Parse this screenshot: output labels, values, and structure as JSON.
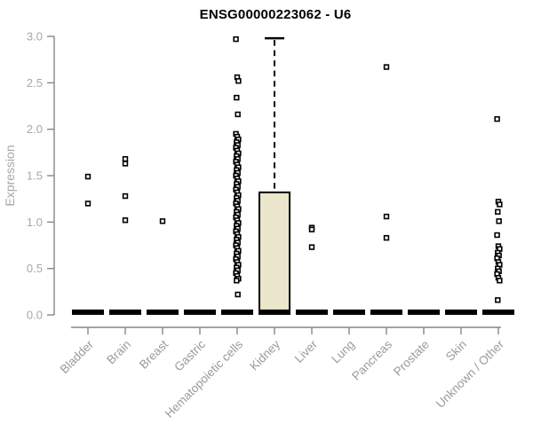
{
  "colors": {
    "background": "#ffffff",
    "title": "#000000",
    "axis": "#878787",
    "tick_label": "#a3a8ad",
    "category_label": "#9a9a9a",
    "box_fill": "#ece6cc",
    "box_stroke": "#000000",
    "point_stroke": "#000000",
    "median_bar": "#000000"
  },
  "chart_data": {
    "type": "boxplot",
    "title": "ENSG00000223062 - U6",
    "ylabel": "Expression",
    "xlabel": "",
    "ylim": [
      0.0,
      3.0
    ],
    "yticks": [
      "0.0",
      "0.5",
      "1.0",
      "1.5",
      "2.0",
      "2.5",
      "3.0"
    ],
    "ytick_values": [
      0.0,
      0.5,
      1.0,
      1.5,
      2.0,
      2.5,
      3.0
    ],
    "grid": false,
    "legend": "none",
    "categories": [
      "Bladder",
      "Brain",
      "Breast",
      "Gastric",
      "Hematopoietic cells",
      "Kidney",
      "Liver",
      "Lung",
      "Pancreas",
      "Prostate",
      "Skin",
      "Unknown / Other"
    ],
    "series": [
      {
        "category": "Bladder",
        "median": 0.02,
        "points": [
          1.49,
          1.2
        ]
      },
      {
        "category": "Brain",
        "median": 0.02,
        "points": [
          1.68,
          1.63,
          1.28,
          1.02
        ]
      },
      {
        "category": "Breast",
        "median": 0.02,
        "points": [
          1.01
        ]
      },
      {
        "category": "Gastric",
        "median": 0.02,
        "points": []
      },
      {
        "category": "Hematopoietic cells",
        "median": 0.02,
        "points": [
          2.97,
          2.56,
          2.52,
          2.34,
          2.16,
          1.95,
          1.92,
          1.89,
          1.86,
          1.83,
          1.8,
          1.77,
          1.74,
          1.71,
          1.68,
          1.65,
          1.62,
          1.59,
          1.56,
          1.53,
          1.5,
          1.47,
          1.44,
          1.41,
          1.38,
          1.35,
          1.32,
          1.29,
          1.26,
          1.23,
          1.2,
          1.17,
          1.14,
          1.11,
          1.08,
          1.05,
          1.02,
          0.99,
          0.96,
          0.93,
          0.9,
          0.87,
          0.84,
          0.81,
          0.78,
          0.75,
          0.72,
          0.69,
          0.66,
          0.63,
          0.6,
          0.57,
          0.54,
          0.51,
          0.48,
          0.45,
          0.42,
          0.39,
          0.37,
          0.22
        ]
      },
      {
        "category": "Kidney",
        "median": 0.02,
        "box": {
          "q1": 0.0,
          "q3": 1.32,
          "whisker_high": 2.98
        },
        "points": []
      },
      {
        "category": "Liver",
        "median": 0.02,
        "points": [
          0.94,
          0.92,
          0.73
        ]
      },
      {
        "category": "Lung",
        "median": 0.02,
        "points": []
      },
      {
        "category": "Pancreas",
        "median": 0.02,
        "points": [
          2.67,
          1.06,
          0.83
        ]
      },
      {
        "category": "Prostate",
        "median": 0.02,
        "points": []
      },
      {
        "category": "Skin",
        "median": 0.02,
        "points": []
      },
      {
        "category": "Unknown / Other",
        "median": 0.02,
        "points": [
          2.11,
          1.22,
          1.19,
          1.11,
          1.01,
          0.86,
          0.74,
          0.71,
          0.67,
          0.64,
          0.61,
          0.57,
          0.54,
          0.5,
          0.47,
          0.44,
          0.4,
          0.37,
          0.16
        ]
      }
    ]
  }
}
